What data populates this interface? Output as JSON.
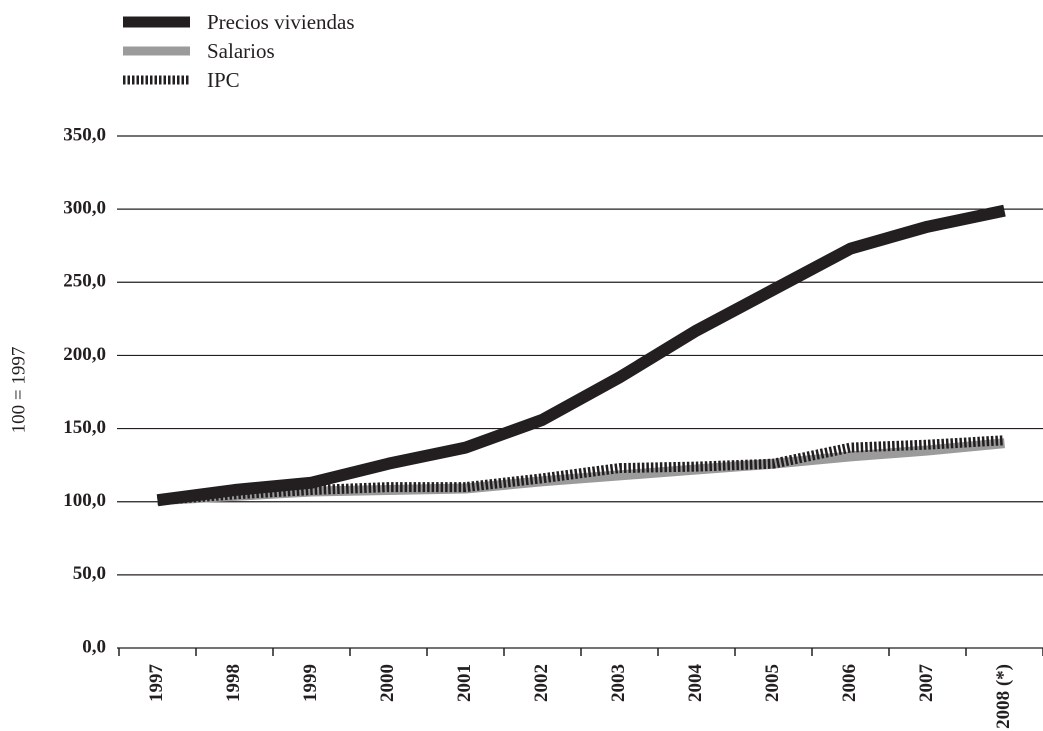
{
  "chart_data": {
    "type": "line",
    "ylabel": "100 = 1997",
    "categories": [
      "1997",
      "1998",
      "1999",
      "2000",
      "2001",
      "2002",
      "2003",
      "2004",
      "2005",
      "2006",
      "2007",
      "2008 (*)"
    ],
    "series": [
      {
        "name": "Precios viviendas",
        "color": "#231f20",
        "values": [
          101,
          108,
          113,
          126,
          137,
          156,
          185,
          217,
          245,
          273,
          288,
          299
        ]
      },
      {
        "name": "Salarios",
        "color": "#9b9b9b",
        "values": [
          101,
          104,
          107,
          108,
          109,
          114,
          118,
          122,
          126,
          131,
          135,
          140
        ]
      },
      {
        "name": "IPC",
        "color": "#231f20",
        "dashed": true,
        "values": [
          101,
          105,
          108,
          110,
          110,
          116,
          123,
          124,
          126,
          137,
          139,
          142
        ]
      }
    ],
    "ylim": [
      0,
      350
    ],
    "yticks": [
      {
        "value": 0,
        "label": "0,0"
      },
      {
        "value": 50,
        "label": "50,0"
      },
      {
        "value": 100,
        "label": "100,0"
      },
      {
        "value": 150,
        "label": "150,0"
      },
      {
        "value": 200,
        "label": "200,0"
      },
      {
        "value": 250,
        "label": "250,0"
      },
      {
        "value": 300,
        "label": "300,0"
      },
      {
        "value": 350,
        "label": "350,0"
      }
    ],
    "grid": true
  }
}
